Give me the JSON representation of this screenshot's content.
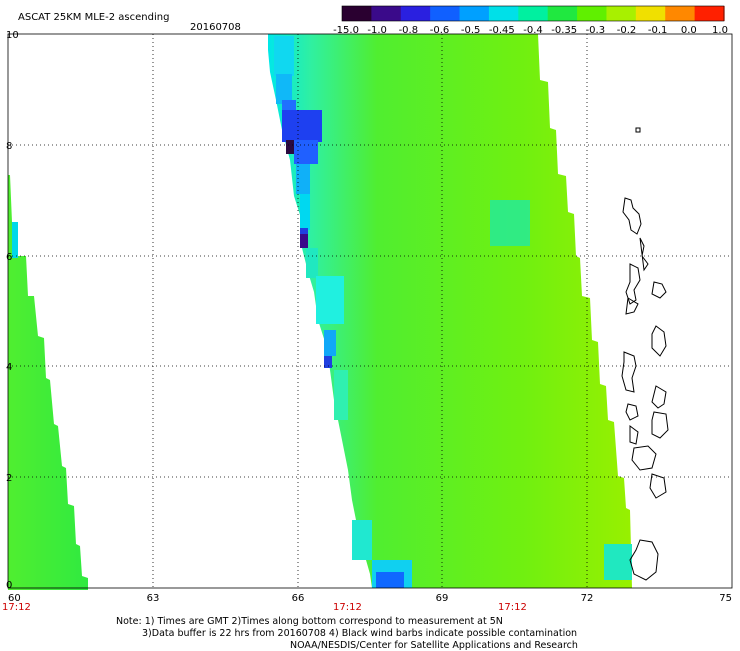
{
  "header": {
    "title": "ASCAT 25KM MLE-2 ascending",
    "date": "20160708"
  },
  "colorbar": {
    "labels": [
      "-15.0",
      "-1.0",
      "-0.8",
      "-0.6",
      "-0.5",
      "-0.45",
      "-0.4",
      "-0.35",
      "-0.3",
      "-0.2",
      "-0.1",
      "0.0",
      "1.0"
    ],
    "colors": [
      "#2a0030",
      "#3a0a8a",
      "#2a20e0",
      "#1060ff",
      "#00a0ff",
      "#00e0e8",
      "#00f0a0",
      "#20e840",
      "#60f000",
      "#a8f000",
      "#f0e000",
      "#ff8800",
      "#ff2000"
    ]
  },
  "map": {
    "x_ticks": [
      "60",
      "63",
      "66",
      "69",
      "72",
      "75"
    ],
    "y_ticks": [
      "0",
      "2",
      "4",
      "6",
      "8",
      "10"
    ],
    "time_labels": [
      "17:12",
      "17:12",
      "17:12"
    ]
  },
  "notes": {
    "line1": "Note: 1) Times are GMT 2)Times along bottom correspond to measurement at 5N",
    "line2": "3)Data buffer is 22 hrs from 20160708 4) Black wind barbs indicate possible contamination",
    "line3": "NOAA/NESDIS/Center for Satellite Applications and Research"
  }
}
